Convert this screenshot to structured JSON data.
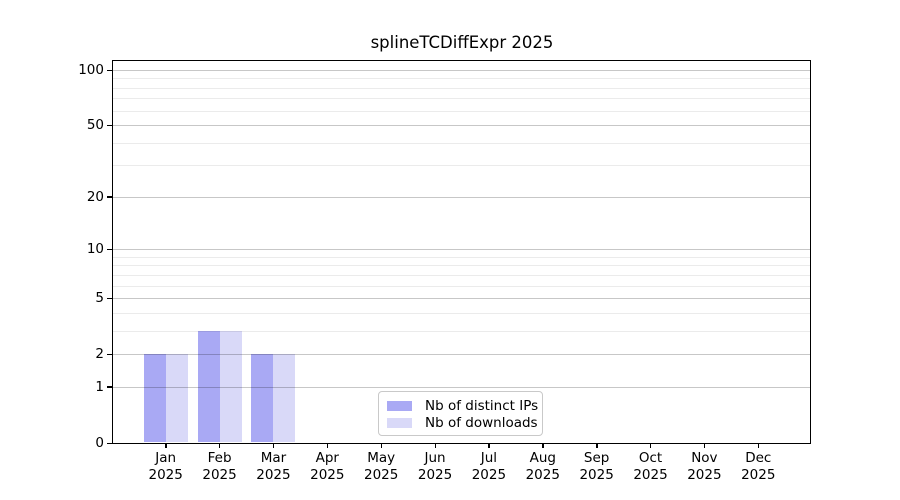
{
  "title": "splineTCDiffExpr 2025",
  "chart_data": {
    "type": "bar",
    "title": "splineTCDiffExpr 2025",
    "categories": [
      "Jan",
      "Feb",
      "Mar",
      "Apr",
      "May",
      "Jun",
      "Jul",
      "Aug",
      "Sep",
      "Oct",
      "Nov",
      "Dec"
    ],
    "category_year": "2025",
    "series": [
      {
        "key": "distinct-ips",
        "name": "Nb of distinct IPs",
        "color": "#a9a9f4",
        "values": [
          2,
          3,
          2,
          0,
          0,
          0,
          0,
          0,
          0,
          0,
          0,
          0
        ]
      },
      {
        "key": "downloads",
        "name": "Nb of downloads",
        "color": "#d9d9f8",
        "values": [
          2,
          3,
          2,
          0,
          0,
          0,
          0,
          0,
          0,
          0,
          0,
          0
        ]
      }
    ],
    "xlabel": "",
    "ylabel": "",
    "y_axis": {
      "scale": "log1p",
      "ylim": [
        0,
        100
      ],
      "tick_values": [
        100,
        50,
        20,
        10,
        5,
        2,
        1,
        0
      ],
      "tick_labels": [
        "100",
        "50",
        "20",
        "10",
        "5",
        "2",
        "1",
        "0"
      ],
      "minor_gridline_values": [
        3,
        4,
        6,
        7,
        8,
        9,
        30,
        40,
        60,
        70,
        80,
        90
      ]
    },
    "grid": true,
    "legend_position": "lower center"
  },
  "colors": {
    "bar_distinct_ips": "#a9a9f4",
    "bar_downloads": "#d9d9f8",
    "grid_major": "rgba(0,0,0,0.22)",
    "grid_minor": "rgba(0,0,0,0.08)",
    "axis": "#000000",
    "legend_border": "#c9c9c9",
    "background": "#ffffff"
  }
}
